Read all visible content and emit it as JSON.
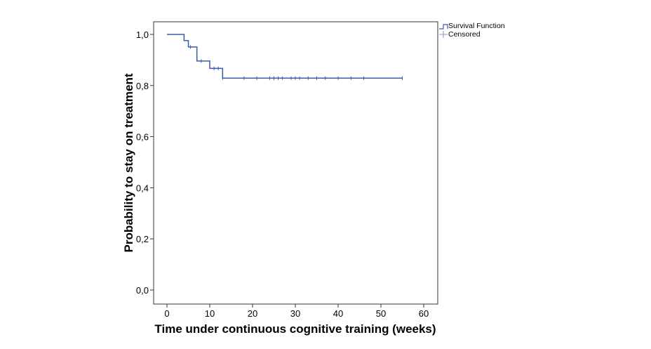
{
  "chart_data": {
    "type": "line",
    "subtype": "kaplan-meier",
    "xlabel": "Time under continuous cognitive training (weeks)",
    "ylabel": "Probability to stay on treatment",
    "xlim": [
      -2,
      63
    ],
    "ylim": [
      -0.05,
      1.05
    ],
    "xticks": [
      0,
      10,
      20,
      30,
      40,
      50,
      60
    ],
    "xtick_labels": [
      "0",
      "10",
      "20",
      "30",
      "40",
      "50",
      "60"
    ],
    "yticks": [
      0,
      0.2,
      0.4,
      0.6,
      0.8,
      1.0
    ],
    "ytick_labels": [
      "0,0",
      "0,2",
      "0,4",
      "0,6",
      "0,8",
      "1,0"
    ],
    "grid": false,
    "legend_position": "outside-top-right",
    "series": [
      {
        "name": "Survival Function",
        "color": "#3a5ba8",
        "steps": [
          [
            0,
            1.0
          ],
          [
            4,
            0.976
          ],
          [
            5,
            0.951
          ],
          [
            7,
            0.896
          ],
          [
            10,
            0.867
          ],
          [
            13,
            0.829
          ],
          [
            55,
            0.829
          ]
        ]
      },
      {
        "name": "Censored",
        "color": "#3a5ba8",
        "points": [
          [
            5.5,
            0.951
          ],
          [
            8,
            0.896
          ],
          [
            11,
            0.867
          ],
          [
            12,
            0.867
          ],
          [
            13,
            0.829
          ],
          [
            18,
            0.829
          ],
          [
            21,
            0.829
          ],
          [
            24,
            0.829
          ],
          [
            25,
            0.829
          ],
          [
            26,
            0.829
          ],
          [
            27,
            0.829
          ],
          [
            29,
            0.829
          ],
          [
            30,
            0.829
          ],
          [
            31,
            0.829
          ],
          [
            33,
            0.829
          ],
          [
            35,
            0.829
          ],
          [
            37,
            0.829
          ],
          [
            40,
            0.829
          ],
          [
            43,
            0.829
          ],
          [
            46,
            0.829
          ],
          [
            55,
            0.829
          ]
        ]
      }
    ],
    "legend": [
      "Survival Function",
      "Censored"
    ]
  }
}
